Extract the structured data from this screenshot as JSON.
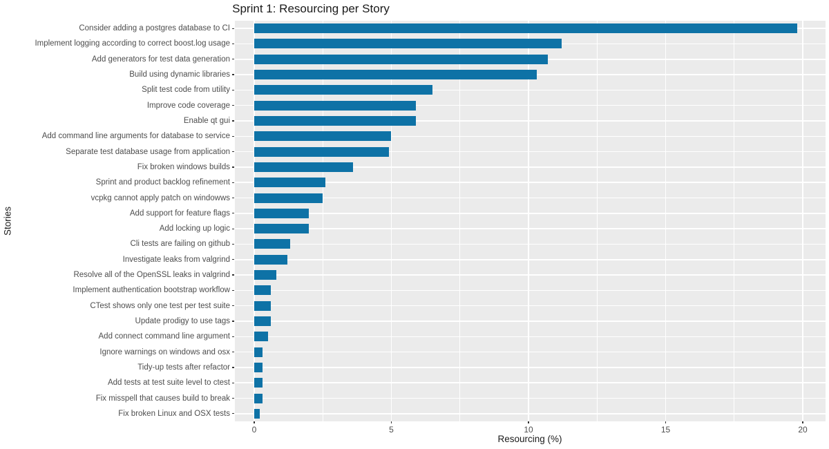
{
  "title": "Sprint 1: Resourcing per Story",
  "chart_data": {
    "type": "bar",
    "orientation": "horizontal",
    "title": "Sprint 1: Resourcing per Story",
    "xlabel": "Resourcing (%)",
    "ylabel": "Stories",
    "categories": [
      "Consider adding a postgres database to CI",
      "Implement logging according to correct boost.log usage",
      "Add generators for test data generation",
      "Build using dynamic libraries",
      "Split test code from utility",
      "Improve code coverage",
      "Enable qt gui",
      "Add command line arguments for database to service",
      "Separate test database usage from application",
      "Fix broken windows builds",
      "Sprint and product backlog refinement",
      "vcpkg cannot apply patch on windowws",
      "Add support for feature flags",
      "Add locking up logic",
      "Cli tests are failing on github",
      "Investigate leaks from valgrind",
      "Resolve all of the OpenSSL leaks in valgrind",
      "Implement authentication bootstrap workflow",
      "CTest shows only one test per test suite",
      "Update prodigy to use tags",
      "Add connect command line argument",
      "Ignore warnings on windows and osx",
      "Tidy-up tests after refactor",
      "Add tests at test suite level to ctest",
      "Fix misspell that causes build to break",
      "Fix broken Linux and OSX tests"
    ],
    "values": [
      19.8,
      11.2,
      10.7,
      10.3,
      6.5,
      5.9,
      5.9,
      5.0,
      4.9,
      3.6,
      2.6,
      2.5,
      2.0,
      2.0,
      1.3,
      1.2,
      0.8,
      0.6,
      0.6,
      0.6,
      0.5,
      0.3,
      0.3,
      0.3,
      0.3,
      0.2
    ],
    "x_major_ticks": [
      0,
      5,
      10,
      15,
      20
    ],
    "x_minor_ticks": [
      2.5,
      7.5,
      12.5,
      17.5
    ],
    "xlim": [
      -0.705,
      20.83
    ],
    "grid": true,
    "legend_position": "none",
    "colors": {
      "bar": "#0e72a6",
      "panel_background": "#ebebeb",
      "gridline": "#ffffff",
      "tick_text": "#4d4d4d",
      "axis_title_text": "#1a1a1a",
      "title_text": "#1a1a1a"
    }
  }
}
